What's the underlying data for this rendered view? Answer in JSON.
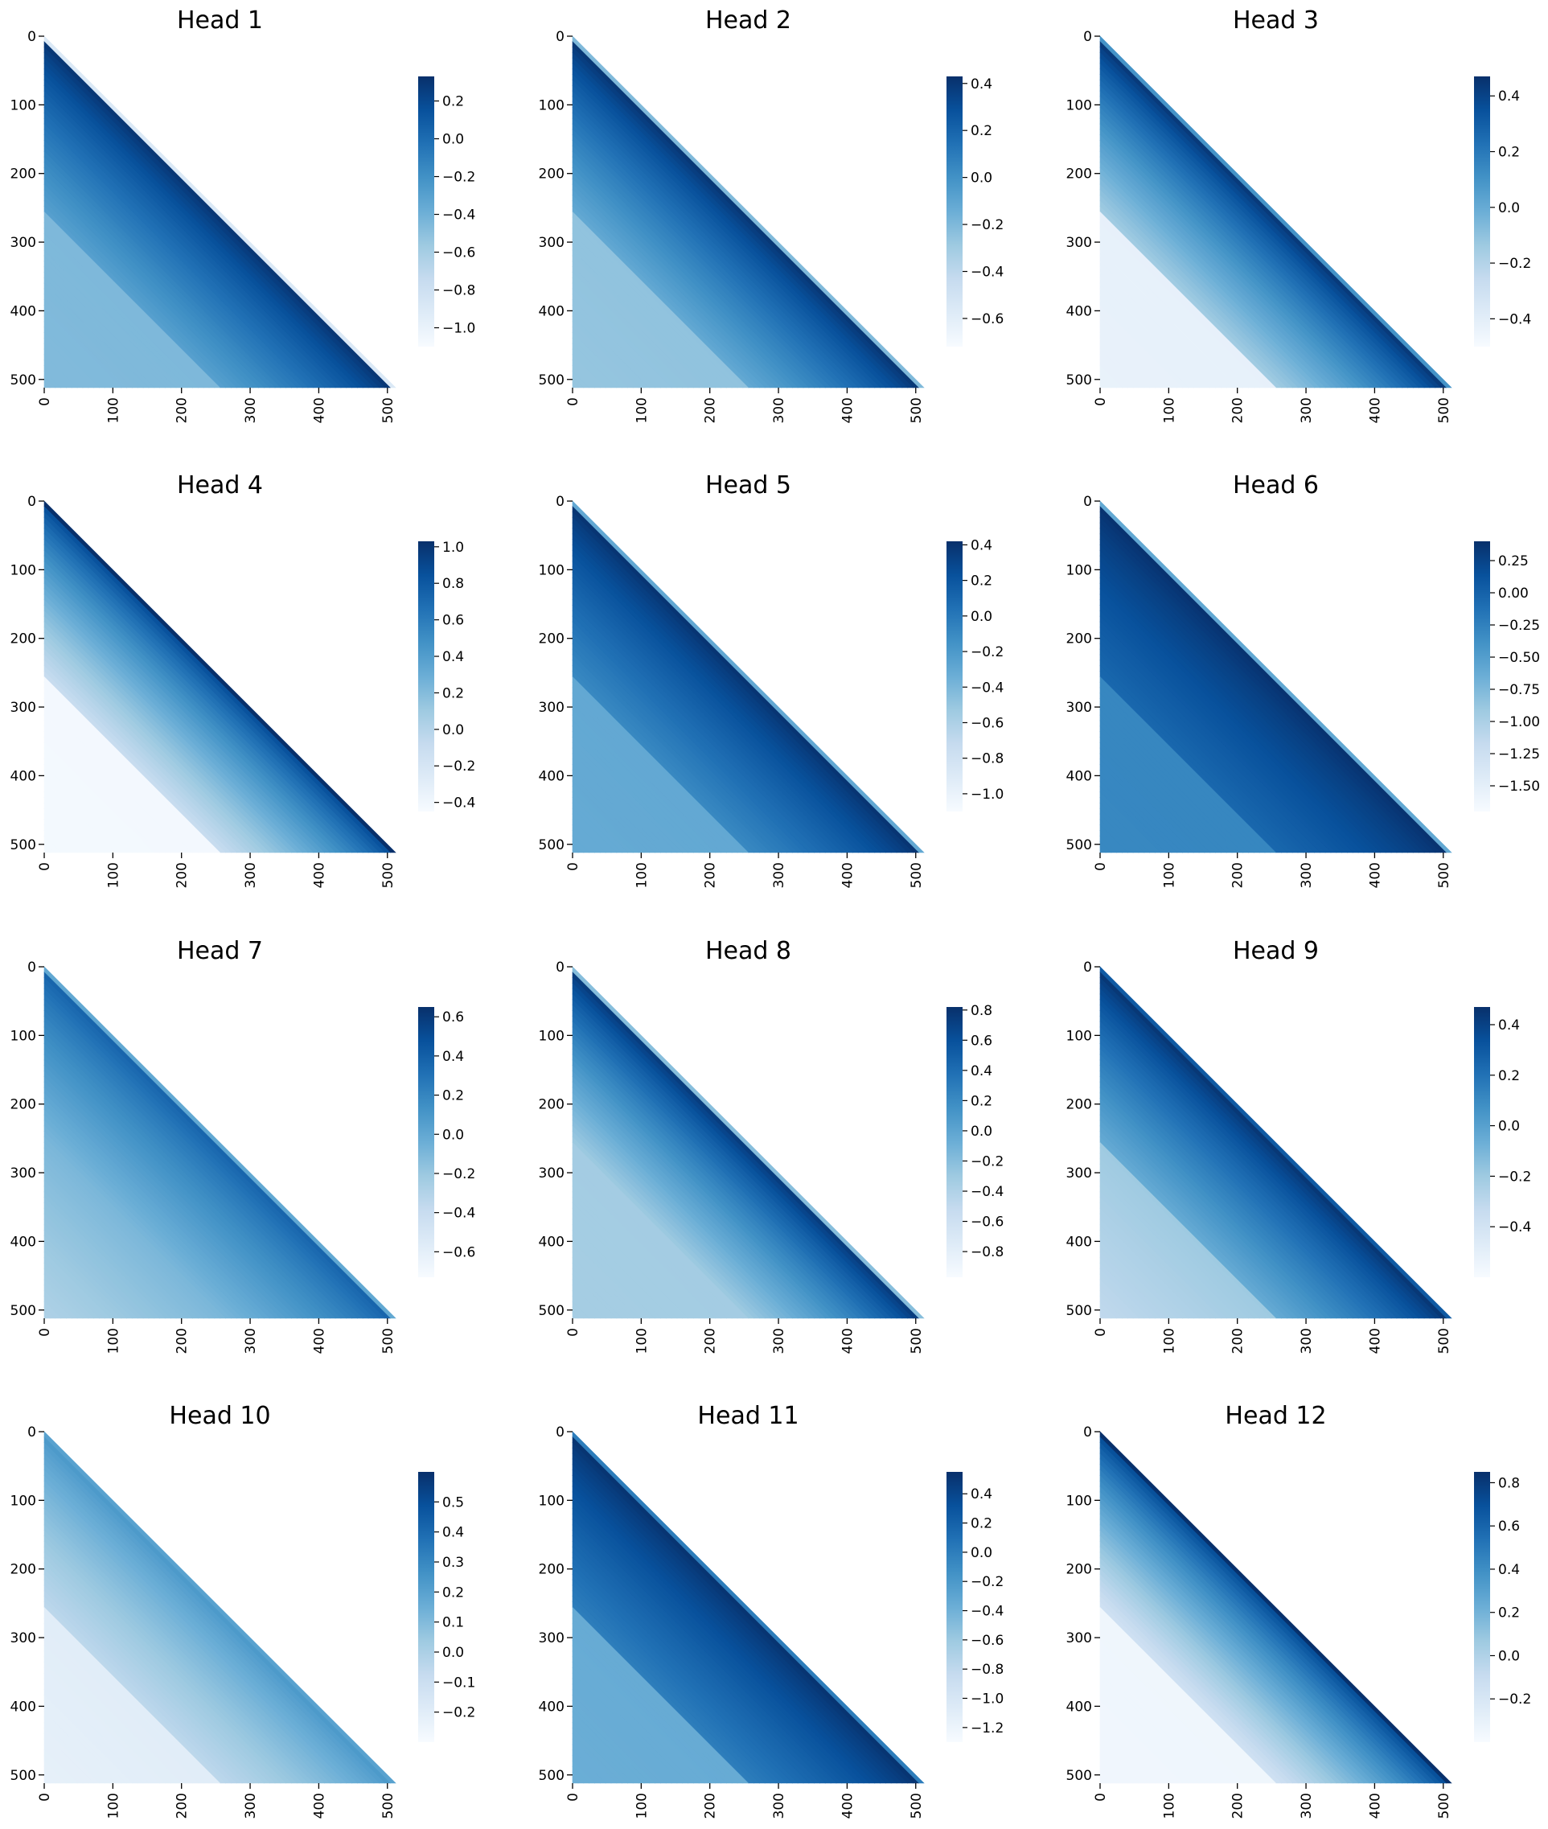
{
  "chart_data": [
    {
      "type": "heatmap",
      "title": "Head 1",
      "x_ticks": [
        "0",
        "100",
        "200",
        "300",
        "400",
        "500"
      ],
      "y_ticks": [
        "0",
        "100",
        "200",
        "300",
        "400",
        "500"
      ],
      "xlim": [
        0,
        512
      ],
      "ylim": [
        0,
        512
      ],
      "colormap": "Blues",
      "colorbar": {
        "min": -1.1,
        "max": 0.33,
        "ticks": [
          "0.2",
          "0.0",
          "−0.2",
          "−0.4",
          "−0.6",
          "−0.8",
          "−1.0"
        ],
        "tick_values": [
          0.2,
          0.0,
          -0.2,
          -0.4,
          -0.6,
          -0.8,
          -1.0
        ]
      },
      "pattern": {
        "diag": -0.9,
        "peak": 0.33,
        "mid": -0.3,
        "far": -0.45,
        "far_step": 0.05
      }
    },
    {
      "type": "heatmap",
      "title": "Head 2",
      "x_ticks": [
        "0",
        "100",
        "200",
        "300",
        "400",
        "500"
      ],
      "y_ticks": [
        "0",
        "100",
        "200",
        "300",
        "400",
        "500"
      ],
      "xlim": [
        0,
        512
      ],
      "ylim": [
        0,
        512
      ],
      "colormap": "Blues",
      "colorbar": {
        "min": -0.72,
        "max": 0.43,
        "ticks": [
          "0.4",
          "0.2",
          "0.0",
          "−0.2",
          "−0.4",
          "−0.6"
        ],
        "tick_values": [
          0.4,
          0.2,
          0.0,
          -0.2,
          -0.4,
          -0.6
        ]
      },
      "pattern": {
        "diag": -0.2,
        "peak": 0.43,
        "mid": -0.12,
        "far": -0.25,
        "far_step": 0.05
      }
    },
    {
      "type": "heatmap",
      "title": "Head 3",
      "x_ticks": [
        "0",
        "100",
        "200",
        "300",
        "400",
        "500"
      ],
      "y_ticks": [
        "0",
        "100",
        "200",
        "300",
        "400",
        "500"
      ],
      "xlim": [
        0,
        512
      ],
      "ylim": [
        0,
        512
      ],
      "colormap": "Blues",
      "colorbar": {
        "min": -0.5,
        "max": 0.47,
        "ticks": [
          "0.4",
          "0.2",
          "0.0",
          "−0.2",
          "−0.4"
        ],
        "tick_values": [
          0.4,
          0.2,
          0.0,
          -0.2,
          -0.4
        ]
      },
      "pattern": {
        "diag": 0.1,
        "peak": 0.47,
        "mid": -0.15,
        "far": -0.42,
        "far_step": 0.03
      }
    },
    {
      "type": "heatmap",
      "title": "Head 4",
      "x_ticks": [
        "0",
        "100",
        "200",
        "300",
        "400",
        "500"
      ],
      "y_ticks": [
        "0",
        "100",
        "200",
        "300",
        "400",
        "500"
      ],
      "xlim": [
        0,
        512
      ],
      "ylim": [
        0,
        512
      ],
      "colormap": "Blues",
      "colorbar": {
        "min": -0.45,
        "max": 1.03,
        "ticks": [
          "1.0",
          "0.8",
          "0.6",
          "0.4",
          "0.2",
          "0.0",
          "−0.2",
          "−0.4"
        ],
        "tick_values": [
          1.0,
          0.8,
          0.6,
          0.4,
          0.2,
          0.0,
          -0.2,
          -0.4
        ]
      },
      "pattern": {
        "diag": 1.03,
        "peak": 0.9,
        "mid": -0.1,
        "far": -0.42,
        "far_step": 0.01
      }
    },
    {
      "type": "heatmap",
      "title": "Head 5",
      "x_ticks": [
        "0",
        "100",
        "200",
        "300",
        "400",
        "500"
      ],
      "y_ticks": [
        "0",
        "100",
        "200",
        "300",
        "400",
        "500"
      ],
      "xlim": [
        0,
        512
      ],
      "ylim": [
        0,
        512
      ],
      "colormap": "Blues",
      "colorbar": {
        "min": -1.1,
        "max": 0.42,
        "ticks": [
          "0.4",
          "0.2",
          "0.0",
          "−0.2",
          "−0.4",
          "−0.6",
          "−0.8",
          "−1.0"
        ],
        "tick_values": [
          0.4,
          0.2,
          0.0,
          -0.2,
          -0.4,
          -0.6,
          -0.8,
          -1.0
        ]
      },
      "pattern": {
        "diag": -0.3,
        "peak": 0.42,
        "mid": -0.1,
        "far": -0.3,
        "far_step": 0.05
      }
    },
    {
      "type": "heatmap",
      "title": "Head 6",
      "x_ticks": [
        "0",
        "100",
        "200",
        "300",
        "400",
        "500"
      ],
      "y_ticks": [
        "0",
        "100",
        "200",
        "300",
        "400",
        "500"
      ],
      "xlim": [
        0,
        512
      ],
      "ylim": [
        0,
        512
      ],
      "colormap": "Blues",
      "colorbar": {
        "min": -1.7,
        "max": 0.4,
        "ticks": [
          "0.25",
          "0.00",
          "−0.25",
          "−0.50",
          "−0.75",
          "−1.00",
          "−1.25",
          "−1.50"
        ],
        "tick_values": [
          0.25,
          0.0,
          -0.25,
          -0.5,
          -0.75,
          -1.0,
          -1.25,
          -1.5
        ]
      },
      "pattern": {
        "diag": -0.6,
        "peak": 0.4,
        "mid": -0.05,
        "far": -0.3,
        "far_step": 0.02
      }
    },
    {
      "type": "heatmap",
      "title": "Head 7",
      "x_ticks": [
        "0",
        "100",
        "200",
        "300",
        "400",
        "500"
      ],
      "y_ticks": [
        "0",
        "100",
        "200",
        "300",
        "400",
        "500"
      ],
      "xlim": [
        0,
        512
      ],
      "ylim": [
        0,
        512
      ],
      "colormap": "Blues",
      "colorbar": {
        "min": -0.73,
        "max": 0.65,
        "ticks": [
          "0.6",
          "0.4",
          "0.2",
          "0.0",
          "−0.2",
          "−0.4",
          "−0.6"
        ],
        "tick_values": [
          0.6,
          0.4,
          0.2,
          0.0,
          -0.2,
          -0.4,
          -0.6
        ]
      },
      "pattern": {
        "diag": 0.0,
        "peak": 0.4,
        "mid": -0.1,
        "far": -0.1,
        "far_step": 0.62
      }
    },
    {
      "type": "heatmap",
      "title": "Head 8",
      "x_ticks": [
        "0",
        "100",
        "200",
        "300",
        "400",
        "500"
      ],
      "y_ticks": [
        "0",
        "100",
        "200",
        "300",
        "400",
        "500"
      ],
      "xlim": [
        0,
        512
      ],
      "ylim": [
        0,
        512
      ],
      "colormap": "Blues",
      "colorbar": {
        "min": -0.97,
        "max": 0.82,
        "ticks": [
          "0.8",
          "0.6",
          "0.4",
          "0.2",
          "0.0",
          "−0.2",
          "−0.4",
          "−0.6",
          "−0.8"
        ],
        "tick_values": [
          0.8,
          0.6,
          0.4,
          0.2,
          0.0,
          -0.2,
          -0.4,
          -0.6,
          -0.8
        ]
      },
      "pattern": {
        "diag": -0.2,
        "peak": 0.8,
        "mid": -0.3,
        "far": -0.33,
        "far_step": 0.03
      }
    },
    {
      "type": "heatmap",
      "title": "Head 9",
      "x_ticks": [
        "0",
        "100",
        "200",
        "300",
        "400",
        "500"
      ],
      "y_ticks": [
        "0",
        "100",
        "200",
        "300",
        "400",
        "500"
      ],
      "xlim": [
        0,
        512
      ],
      "ylim": [
        0,
        512
      ],
      "colormap": "Blues",
      "colorbar": {
        "min": -0.6,
        "max": 0.47,
        "ticks": [
          "0.4",
          "0.2",
          "0.0",
          "−0.2",
          "−0.4"
        ],
        "tick_values": [
          0.4,
          0.2,
          0.0,
          -0.2,
          -0.4
        ]
      },
      "pattern": {
        "diag": 0.3,
        "peak": 0.47,
        "mid": -0.05,
        "far": -0.2,
        "far_step": 0.38
      }
    },
    {
      "type": "heatmap",
      "title": "Head 10",
      "x_ticks": [
        "0",
        "100",
        "200",
        "300",
        "400",
        "500"
      ],
      "y_ticks": [
        "0",
        "100",
        "200",
        "300",
        "400",
        "500"
      ],
      "xlim": [
        0,
        512
      ],
      "ylim": [
        0,
        512
      ],
      "colormap": "Blues",
      "colorbar": {
        "min": -0.3,
        "max": 0.6,
        "ticks": [
          "0.5",
          "0.4",
          "0.3",
          "0.2",
          "0.1",
          "0.0",
          "−0.1",
          "−0.2"
        ],
        "tick_values": [
          0.5,
          0.4,
          0.3,
          0.2,
          0.1,
          0.0,
          -0.1,
          -0.2
        ]
      },
      "pattern": {
        "diag": 0.2,
        "peak": 0.25,
        "mid": -0.05,
        "far": -0.2,
        "far_step": 0.08
      }
    },
    {
      "type": "heatmap",
      "title": "Head 11",
      "x_ticks": [
        "0",
        "100",
        "200",
        "300",
        "400",
        "500"
      ],
      "y_ticks": [
        "0",
        "100",
        "200",
        "300",
        "400",
        "500"
      ],
      "xlim": [
        0,
        512
      ],
      "ylim": [
        0,
        512
      ],
      "colormap": "Blues",
      "colorbar": {
        "min": -1.3,
        "max": 0.55,
        "ticks": [
          "0.4",
          "0.2",
          "0.0",
          "−0.2",
          "−0.4",
          "−0.6",
          "−0.8",
          "−1.0",
          "−1.2"
        ],
        "tick_values": [
          0.4,
          0.2,
          0.0,
          -0.2,
          -0.4,
          -0.6,
          -0.8,
          -1.0,
          -1.2
        ]
      },
      "pattern": {
        "diag": 0.0,
        "peak": 0.55,
        "mid": 0.0,
        "far": -0.35,
        "far_step": 0.08
      }
    },
    {
      "type": "heatmap",
      "title": "Head 12",
      "x_ticks": [
        "0",
        "100",
        "200",
        "300",
        "400",
        "500"
      ],
      "y_ticks": [
        "0",
        "100",
        "200",
        "300",
        "400",
        "500"
      ],
      "xlim": [
        0,
        512
      ],
      "ylim": [
        0,
        512
      ],
      "colormap": "Blues",
      "colorbar": {
        "min": -0.4,
        "max": 0.85,
        "ticks": [
          "0.8",
          "0.6",
          "0.4",
          "0.2",
          "0.0",
          "−0.2"
        ],
        "tick_values": [
          0.8,
          0.6,
          0.4,
          0.2,
          0.0,
          -0.2
        ]
      },
      "pattern": {
        "diag": 0.85,
        "peak": 0.75,
        "mid": -0.15,
        "far": -0.35,
        "far_step": 0.02
      }
    }
  ],
  "colors": {
    "palette": [
      "#f7fbff",
      "#deebf7",
      "#c6dbef",
      "#9ecae1",
      "#6baed6",
      "#4292c6",
      "#2171b5",
      "#08519c",
      "#08306b"
    ],
    "outside_triangle": "#ffffff",
    "axis": "#000000"
  }
}
